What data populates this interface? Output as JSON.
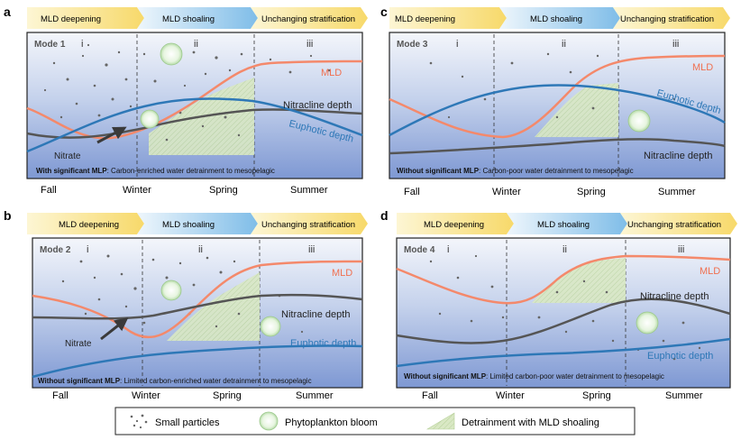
{
  "panels": [
    {
      "letter": "a",
      "phases": [
        "MLD deepening",
        "MLD shoaling",
        "Unchanging stratification"
      ],
      "mode": "Mode 1",
      "stages": [
        "i",
        "ii",
        "iii"
      ],
      "labels": {
        "mld": "MLD",
        "nitracline": "Nitracline depth",
        "euphotic": "Euphotic depth",
        "nitrate": "Nitrate"
      },
      "caption_bold": "With significant MLP",
      "caption_rest": ": Carbon-enriched water detrainment to mesopelagic",
      "seasons": [
        "Fall",
        "Winter",
        "Spring",
        "Summer"
      ]
    },
    {
      "letter": "b",
      "phases": [
        "MLD deepening",
        "MLD shoaling",
        "Unchanging stratification"
      ],
      "mode": "Mode 2",
      "stages": [
        "i",
        "ii",
        "iii"
      ],
      "labels": {
        "mld": "MLD",
        "nitracline": "Nitracline depth",
        "euphotic": "Euphotic depth",
        "nitrate": "Nitrate"
      },
      "caption_bold": "Without significant MLP",
      "caption_rest": ": Limited carbon-enriched water detrainment to mesopelagic",
      "seasons": [
        "Fall",
        "Winter",
        "Spring",
        "Summer"
      ]
    },
    {
      "letter": "c",
      "phases": [
        "MLD deepening",
        "MLD shoaling",
        "Unchanging stratification"
      ],
      "mode": "Mode 3",
      "stages": [
        "i",
        "ii",
        "iii"
      ],
      "labels": {
        "mld": "MLD",
        "nitracline": "Nitracline depth",
        "euphotic": "Euphotic depth",
        "nitrate": ""
      },
      "caption_bold": "Without significant MLP",
      "caption_rest": ": Carbon-poor water detrainment to mesopelagic",
      "seasons": [
        "Fall",
        "Winter",
        "Spring",
        "Summer"
      ]
    },
    {
      "letter": "d",
      "phases": [
        "MLD deepening",
        "MLD shoaling",
        "Unchanging stratification"
      ],
      "mode": "Mode 4",
      "stages": [
        "i",
        "ii",
        "iii"
      ],
      "labels": {
        "mld": "MLD",
        "nitracline": "Nitracline depth",
        "euphotic": "Euphotic depth",
        "nitrate": ""
      },
      "caption_bold": "Without significant MLP",
      "caption_rest": ": Limited carbon-poor water detrainment to mesopelagic",
      "seasons": [
        "Fall",
        "Winter",
        "Spring",
        "Summer"
      ]
    }
  ],
  "legend": {
    "small_particles": "Small particles",
    "bloom": "Phytoplankton bloom",
    "detrainment": "Detrainment with MLD shoaling"
  },
  "colors": {
    "mld": "#f4896b",
    "nitracline": "#555555",
    "euphotic": "#2e78b7",
    "detrainment_fill": "#d9e8c4",
    "phase_yellow": "#f9e27a",
    "phase_blue": "#8ec6ea"
  }
}
